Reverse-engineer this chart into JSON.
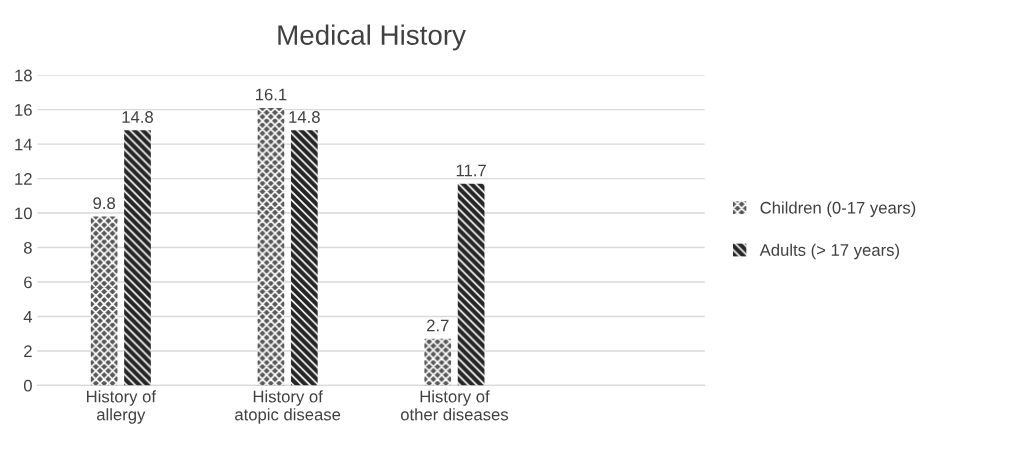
{
  "chart_data": {
    "type": "bar",
    "title": "Medical History",
    "categories": [
      "History of\nallergy",
      "History of\natopic disease",
      "History of\nother diseases",
      null
    ],
    "series": [
      {
        "name": "Children (0-17 years)",
        "color": "#595959",
        "values": [
          9.8,
          16.1,
          2.7,
          null
        ]
      },
      {
        "name": "Adults (> 17 years)",
        "color": "#262626",
        "values": [
          14.8,
          14.8,
          11.7,
          null
        ]
      }
    ],
    "ylim": [
      0,
      18
    ],
    "yticks": [
      0,
      2,
      4,
      6,
      8,
      10,
      12,
      14,
      16,
      18
    ],
    "grid": "y",
    "legend": "right",
    "data_labels": true
  }
}
